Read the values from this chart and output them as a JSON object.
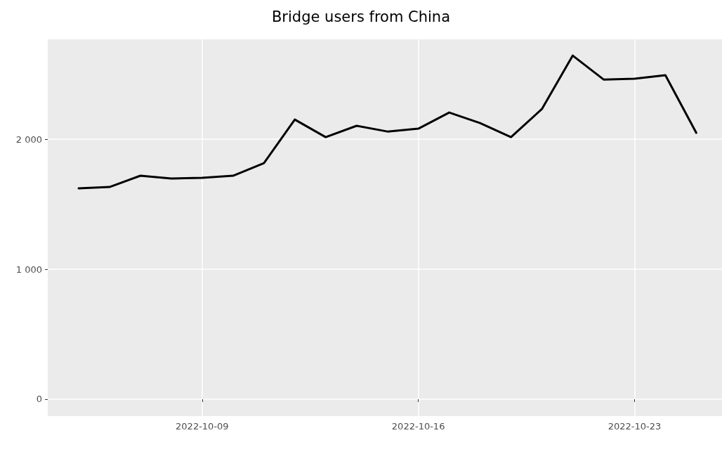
{
  "chart_data": {
    "type": "line",
    "title": "Bridge users from China",
    "x": [
      "2022-10-05",
      "2022-10-06",
      "2022-10-07",
      "2022-10-08",
      "2022-10-09",
      "2022-10-10",
      "2022-10-11",
      "2022-10-12",
      "2022-10-13",
      "2022-10-14",
      "2022-10-15",
      "2022-10-16",
      "2022-10-17",
      "2022-10-18",
      "2022-10-19",
      "2022-10-20",
      "2022-10-21",
      "2022-10-22",
      "2022-10-23",
      "2022-10-24",
      "2022-10-25"
    ],
    "series": [
      {
        "color": "#000000",
        "values": [
          1622,
          1632,
          1719,
          1697,
          1703,
          1719,
          1816,
          2151,
          2016,
          2103,
          2059,
          2081,
          2205,
          2124,
          2016,
          2232,
          2643,
          2459,
          2465,
          2492,
          2049
        ]
      }
    ],
    "xlim": [
      "2022-10-04",
      "2022-10-25T20:00"
    ],
    "xticks": [
      "2022-10-09",
      "2022-10-16",
      "2022-10-23"
    ],
    "ylim": [
      -130,
      2768
    ],
    "yticks": [
      0,
      {
        "value": 1000,
        "label": "1 000"
      },
      {
        "value": 2000,
        "label": "2 000"
      }
    ],
    "grid": true,
    "marker": "none",
    "line_style": "solid"
  }
}
